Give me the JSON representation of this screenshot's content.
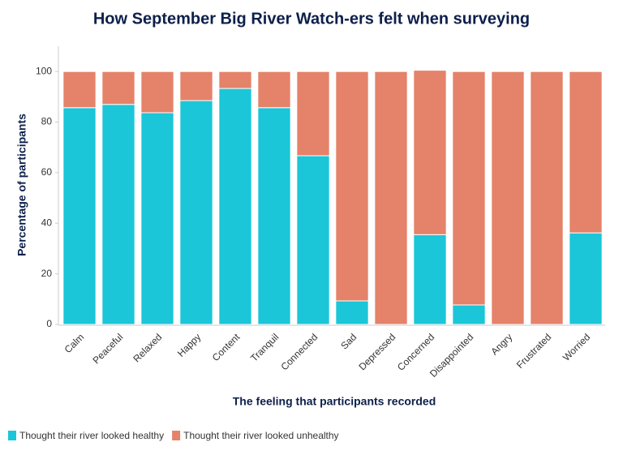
{
  "chart_data": {
    "type": "stacked_bar",
    "title": "How September Big River Watch-ers felt when surveying",
    "x_label": "The feeling that participants recorded",
    "y_label": "Percentage of participants",
    "categories": [
      "Calm",
      "Peaceful",
      "Relaxed",
      "Happy",
      "Content",
      "Tranquil",
      "Connected",
      "Sad",
      "Depressed",
      "Concerned",
      "Disappointed",
      "Angry",
      "Frustrated",
      "Worried"
    ],
    "series": [
      {
        "name": "Thought their river looked healthy",
        "color": "#1ac6d8",
        "values": [
          85.7,
          87,
          83.7,
          88.5,
          93.3,
          85.7,
          66.7,
          9.3,
          0,
          35.5,
          7.7,
          0,
          0,
          36.2
        ]
      },
      {
        "name": "Thought their river looked unhealthy",
        "color": "#e5826a",
        "values": [
          14.3,
          13,
          16.3,
          11.5,
          6.7,
          14.3,
          33.3,
          90.7,
          100,
          65,
          92.3,
          100,
          100,
          63.8
        ]
      }
    ],
    "ylim": [
      0,
      110
    ],
    "yticks": [
      0,
      20,
      40,
      60,
      80,
      100
    ],
    "legend": "bottom-left"
  }
}
